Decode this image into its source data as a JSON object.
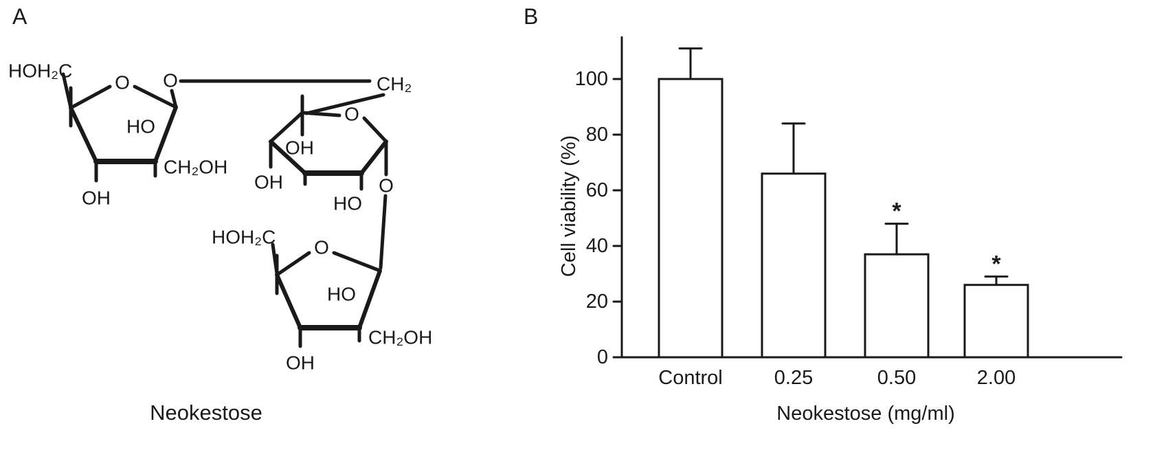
{
  "figure": {
    "panel_a_label": "A",
    "panel_b_label": "B",
    "caption": "Neokestose"
  },
  "structure": {
    "ring1": {
      "hoh2c": "HOH₂C",
      "ring_o": "O",
      "glycosidic_o": "O",
      "ho": "HO",
      "ch2oh": "CH₂OH",
      "oh": "OH"
    },
    "bridge": {
      "ch2": "CH₂"
    },
    "ring2": {
      "ring_o": "O",
      "oh_inner": "OH",
      "oh_left": "OH",
      "ho": "HO",
      "glycosidic_o": "O"
    },
    "ring3": {
      "hoh2c": "HOH₂C",
      "ring_o": "O",
      "ho": "HO",
      "ch2oh": "CH₂OH",
      "oh": "OH"
    }
  },
  "chart_data": {
    "type": "bar",
    "title": "",
    "categories": [
      "Control",
      "0.25",
      "0.50",
      "2.00"
    ],
    "values": [
      100,
      66,
      37,
      26
    ],
    "error_upper": [
      11,
      18,
      11,
      3
    ],
    "significance": [
      "",
      "",
      "*",
      "*"
    ],
    "xlabel": "Neokestose (mg/ml)",
    "ylabel": "Cell viability (%)",
    "ylim": [
      0,
      115
    ],
    "yticks": [
      0,
      20,
      40,
      60,
      80,
      100
    ],
    "bar_fill": "#ffffff",
    "bar_stroke": "#1a1a1a",
    "axis_color": "#1a1a1a",
    "grid": false,
    "legend": "none"
  }
}
